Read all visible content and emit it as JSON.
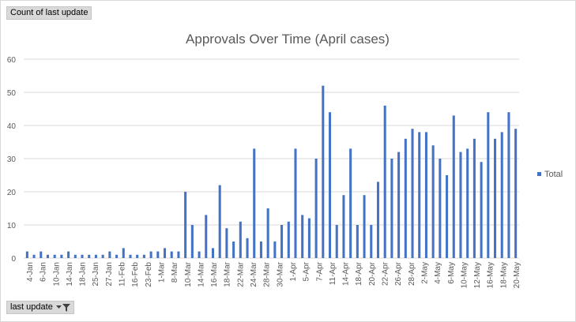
{
  "pivot": {
    "value_field_label": "Count of last update",
    "axis_field_label": "last update"
  },
  "icons": {
    "dropdown": "dropdown-arrow-icon",
    "filter": "funnel-filter-icon"
  },
  "colors": {
    "bar": "#4472c4",
    "grid": "#d9d9d9",
    "text": "#595959",
    "field_button": "#d9d9d9"
  },
  "chart_data": {
    "type": "bar",
    "title": "Approvals Over Time (April cases)",
    "xlabel": "",
    "ylabel": "",
    "ylim": [
      0,
      60
    ],
    "yticks": [
      0,
      10,
      20,
      30,
      40,
      50,
      60
    ],
    "grid": true,
    "legend_position": "right",
    "x_tick_labels": [
      "4-Jan",
      "6-Jan",
      "10-Jan",
      "14-Jan",
      "18-Jan",
      "25-Jan",
      "27-Jan",
      "11-Feb",
      "16-Feb",
      "23-Feb",
      "1-Mar",
      "8-Mar",
      "10-Mar",
      "14-Mar",
      "16-Mar",
      "18-Mar",
      "22-Mar",
      "24-Mar",
      "28-Mar",
      "30-Mar",
      "1-Apr",
      "5-Apr",
      "7-Apr",
      "11-Apr",
      "14-Apr",
      "18-Apr",
      "20-Apr",
      "22-Apr",
      "26-Apr",
      "28-Apr",
      "2-May",
      "4-May",
      "6-May",
      "10-May",
      "12-May",
      "16-May",
      "18-May",
      "20-May"
    ],
    "series": [
      {
        "name": "Total",
        "values": [
          2,
          1,
          2,
          1,
          1,
          1,
          2,
          1,
          1,
          1,
          1,
          1,
          2,
          1,
          3,
          1,
          1,
          1,
          2,
          2,
          3,
          2,
          2,
          20,
          10,
          2,
          13,
          3,
          22,
          9,
          5,
          11,
          6,
          33,
          5,
          15,
          5,
          10,
          11,
          33,
          13,
          12,
          30,
          52,
          44,
          10,
          19,
          33,
          10,
          19,
          10,
          23,
          46,
          30,
          32,
          36,
          39,
          38,
          38,
          34,
          30,
          25,
          43,
          32,
          33,
          36,
          29,
          44,
          36,
          38,
          44,
          39
        ]
      }
    ]
  }
}
